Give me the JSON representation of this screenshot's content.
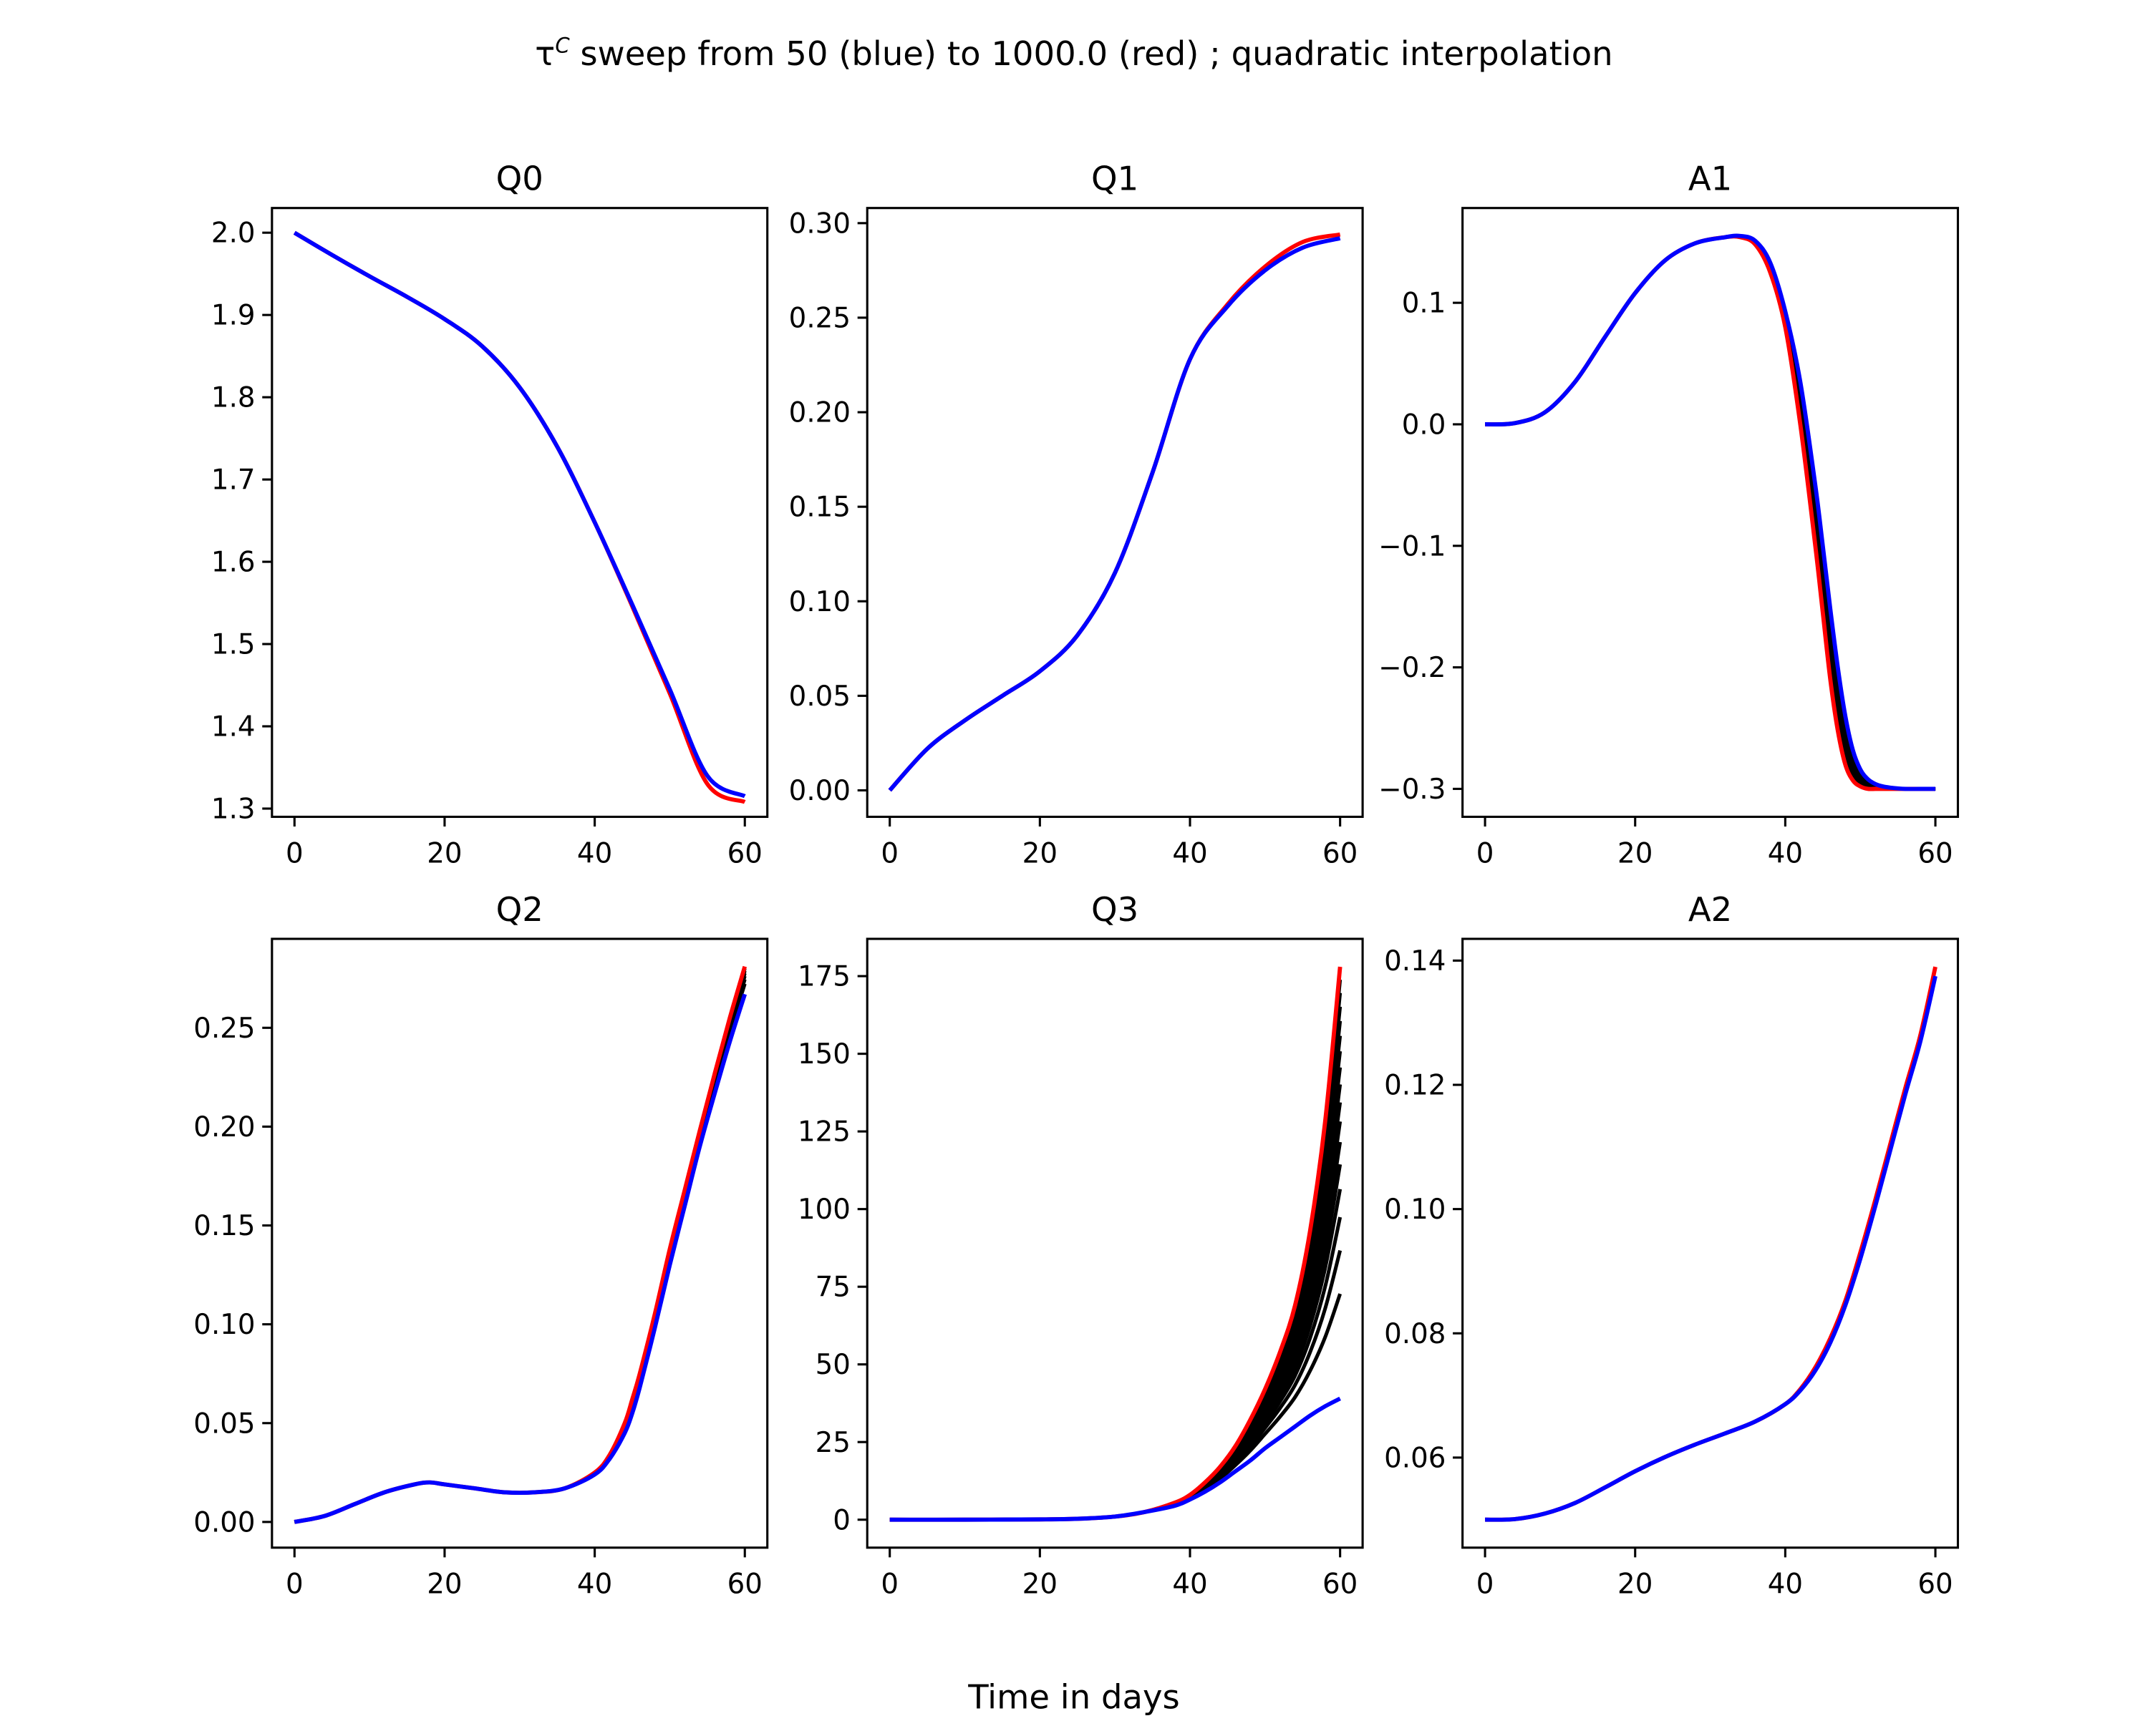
{
  "figure": {
    "title_prefix": "τ",
    "title_superscript": "C",
    "title_rest": " sweep from 50 (blue) to 1000.0 (red) ; quadratic interpolation",
    "xlabel": "Time in days"
  },
  "colors": {
    "low": "#0000ff",
    "mid": "#000000",
    "high": "#ff0000"
  },
  "chart_data": [
    {
      "type": "line",
      "title": "Q0",
      "xlim": [
        -3,
        63
      ],
      "ylim": [
        1.29,
        2.03
      ],
      "xticks": [
        0,
        20,
        40,
        60
      ],
      "xtick_labels": [
        "0",
        "20",
        "40",
        "60"
      ],
      "yticks": [
        1.3,
        1.4,
        1.5,
        1.6,
        1.7,
        1.8,
        1.9,
        2.0
      ],
      "ytick_labels": [
        "1.3",
        "1.4",
        "1.5",
        "1.6",
        "1.7",
        "1.8",
        "1.9",
        "2.0"
      ],
      "x": [
        0,
        5,
        10,
        15,
        20,
        25,
        30,
        35,
        40,
        45,
        50,
        55,
        60
      ],
      "series_low": [
        2.0,
        1.973,
        1.947,
        1.922,
        1.895,
        1.862,
        1.812,
        1.74,
        1.648,
        1.548,
        1.445,
        1.34,
        1.315
      ],
      "series_high": [
        2.0,
        1.973,
        1.947,
        1.922,
        1.895,
        1.862,
        1.812,
        1.74,
        1.648,
        1.546,
        1.44,
        1.33,
        1.308
      ],
      "sweep_count": 0
    },
    {
      "type": "line",
      "title": "Q1",
      "xlim": [
        -3,
        63
      ],
      "ylim": [
        -0.014,
        0.308
      ],
      "xticks": [
        0,
        20,
        40,
        60
      ],
      "xtick_labels": [
        "0",
        "20",
        "40",
        "60"
      ],
      "yticks": [
        0.0,
        0.05,
        0.1,
        0.15,
        0.2,
        0.25,
        0.3
      ],
      "ytick_labels": [
        "0.00",
        "0.05",
        "0.10",
        "0.15",
        "0.20",
        "0.25",
        "0.30"
      ],
      "x": [
        0,
        5,
        10,
        15,
        20,
        25,
        30,
        35,
        40,
        45,
        50,
        55,
        60
      ],
      "series_low": [
        0.0,
        0.022,
        0.037,
        0.05,
        0.063,
        0.082,
        0.115,
        0.168,
        0.228,
        0.256,
        0.275,
        0.287,
        0.292
      ],
      "series_high": [
        0.0,
        0.022,
        0.037,
        0.05,
        0.063,
        0.082,
        0.115,
        0.168,
        0.228,
        0.257,
        0.277,
        0.29,
        0.294
      ],
      "sweep_count": 0
    },
    {
      "type": "line",
      "title": "A1",
      "xlim": [
        -3,
        63
      ],
      "ylim": [
        -0.323,
        0.178
      ],
      "xticks": [
        0,
        20,
        40,
        60
      ],
      "xtick_labels": [
        "0",
        "20",
        "40",
        "60"
      ],
      "yticks": [
        -0.3,
        -0.2,
        -0.1,
        0.0,
        0.1
      ],
      "ytick_labels": [
        "−0.3",
        "−0.2",
        "−0.1",
        "0.0",
        "0.1"
      ],
      "x": [
        0,
        4,
        8,
        12,
        16,
        20,
        24,
        28,
        32,
        34,
        36,
        38,
        40,
        42,
        44,
        45,
        46,
        47,
        48,
        49,
        50,
        51,
        52,
        53,
        54,
        56,
        58,
        60
      ],
      "series_low": [
        0.0,
        0.001,
        0.01,
        0.035,
        0.072,
        0.108,
        0.135,
        0.149,
        0.154,
        0.155,
        0.151,
        0.133,
        0.093,
        0.035,
        -0.05,
        -0.1,
        -0.152,
        -0.2,
        -0.24,
        -0.268,
        -0.284,
        -0.292,
        -0.296,
        -0.298,
        -0.299,
        -0.3,
        -0.3,
        -0.3
      ],
      "series_high": [
        0.0,
        0.001,
        0.01,
        0.035,
        0.072,
        0.108,
        0.135,
        0.149,
        0.154,
        0.154,
        0.148,
        0.125,
        0.08,
        0.0,
        -0.1,
        -0.155,
        -0.21,
        -0.252,
        -0.28,
        -0.293,
        -0.298,
        -0.3,
        -0.3,
        -0.3,
        -0.3,
        -0.3,
        -0.3,
        -0.3
      ],
      "sweep_count": 12
    },
    {
      "type": "line",
      "title": "Q2",
      "xlim": [
        -3,
        63
      ],
      "ylim": [
        -0.013,
        0.295
      ],
      "xticks": [
        0,
        20,
        40,
        60
      ],
      "xtick_labels": [
        "0",
        "20",
        "40",
        "60"
      ],
      "yticks": [
        0.0,
        0.05,
        0.1,
        0.15,
        0.2,
        0.25
      ],
      "ytick_labels": [
        "0.00",
        "0.05",
        "0.10",
        "0.15",
        "0.20",
        "0.25"
      ],
      "x": [
        0,
        4,
        8,
        12,
        16,
        18,
        20,
        24,
        28,
        32,
        36,
        40,
        42,
        44,
        45,
        46,
        48,
        50,
        52,
        54,
        56,
        58,
        60
      ],
      "series_low": [
        0.0,
        0.003,
        0.009,
        0.015,
        0.019,
        0.02,
        0.019,
        0.017,
        0.015,
        0.015,
        0.017,
        0.024,
        0.032,
        0.045,
        0.055,
        0.068,
        0.098,
        0.13,
        0.16,
        0.19,
        0.217,
        0.243,
        0.267
      ],
      "series_high": [
        0.0,
        0.003,
        0.009,
        0.015,
        0.019,
        0.02,
        0.019,
        0.017,
        0.015,
        0.015,
        0.017,
        0.025,
        0.034,
        0.05,
        0.062,
        0.075,
        0.105,
        0.138,
        0.168,
        0.198,
        0.227,
        0.255,
        0.281
      ],
      "sweep_count": 6
    },
    {
      "type": "line",
      "title": "Q3",
      "xlim": [
        -3,
        63
      ],
      "ylim": [
        -9,
        187
      ],
      "xticks": [
        0,
        20,
        40,
        60
      ],
      "xtick_labels": [
        "0",
        "20",
        "40",
        "60"
      ],
      "yticks": [
        0,
        25,
        50,
        75,
        100,
        125,
        150,
        175
      ],
      "ytick_labels": [
        "0",
        "25",
        "50",
        "75",
        "100",
        "125",
        "150",
        "175"
      ],
      "x": [
        0,
        10,
        20,
        25,
        30,
        34,
        38,
        40,
        42,
        44,
        46,
        48,
        50,
        52,
        54,
        56,
        58,
        60
      ],
      "series_low": [
        0,
        0,
        0.1,
        0.3,
        1,
        2.5,
        4.5,
        6.5,
        9,
        12,
        15.5,
        19,
        23,
        26.5,
        30,
        33.5,
        36.5,
        39
      ],
      "series_high": [
        0,
        0,
        0.1,
        0.3,
        1,
        2.5,
        5.5,
        8,
        12,
        17,
        23.5,
        32,
        42,
        54,
        69,
        93,
        128,
        178
      ],
      "sweep_count": 16
    },
    {
      "type": "line",
      "title": "A2",
      "xlim": [
        -3,
        63
      ],
      "ylim": [
        0.0455,
        0.1435
      ],
      "xticks": [
        0,
        20,
        40,
        60
      ],
      "xtick_labels": [
        "0",
        "20",
        "40",
        "60"
      ],
      "yticks": [
        0.06,
        0.08,
        0.1,
        0.12,
        0.14
      ],
      "ytick_labels": [
        "0.06",
        "0.08",
        "0.10",
        "0.12",
        "0.14"
      ],
      "x": [
        0,
        4,
        8,
        12,
        16,
        20,
        24,
        28,
        32,
        36,
        40,
        42,
        44,
        46,
        48,
        50,
        52,
        54,
        56,
        58,
        60
      ],
      "series_low": [
        0.05,
        0.0501,
        0.051,
        0.0527,
        0.0552,
        0.0578,
        0.0601,
        0.0621,
        0.0639,
        0.0658,
        0.0686,
        0.0708,
        0.074,
        0.0785,
        0.0845,
        0.092,
        0.1005,
        0.1095,
        0.1185,
        0.127,
        0.1375
      ],
      "series_high": [
        0.05,
        0.0501,
        0.051,
        0.0527,
        0.0552,
        0.0578,
        0.0601,
        0.0621,
        0.0639,
        0.0658,
        0.0686,
        0.071,
        0.0745,
        0.0792,
        0.0852,
        0.093,
        0.1015,
        0.1105,
        0.1195,
        0.128,
        0.139
      ],
      "sweep_count": 0
    }
  ]
}
